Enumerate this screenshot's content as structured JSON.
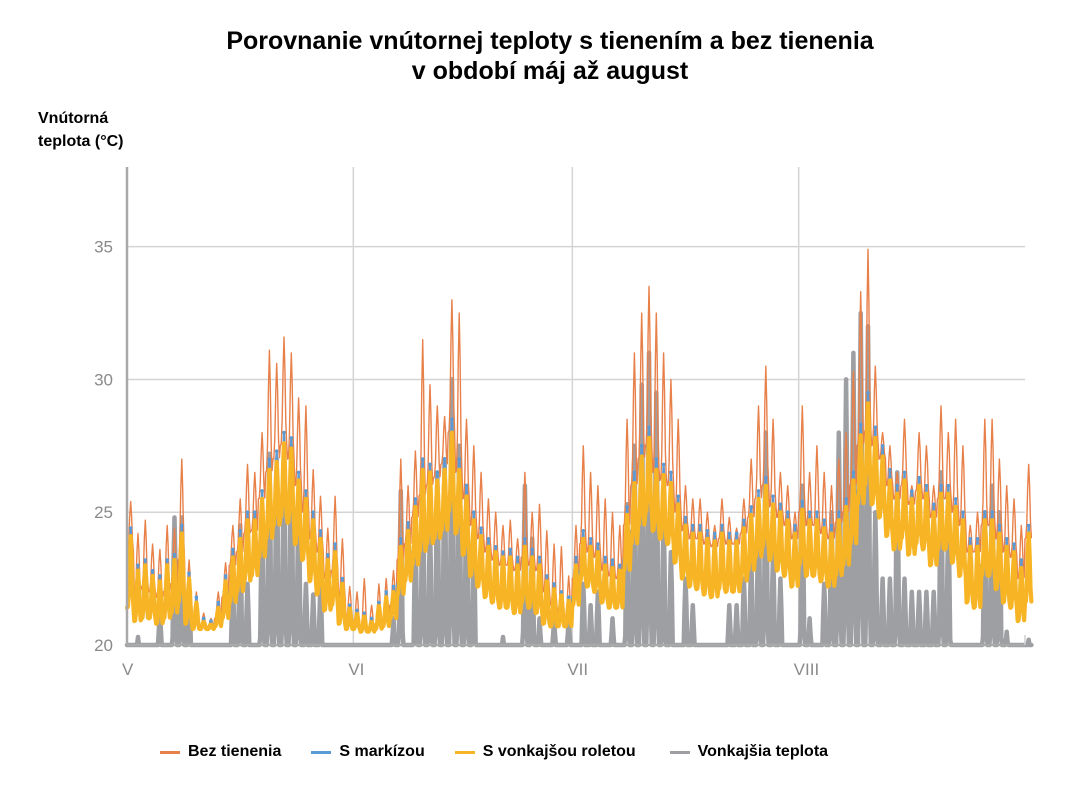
{
  "chart_data": {
    "type": "line",
    "title": "Porovnanie vnútornej teploty s tienením a bez tienenia v období máj až august",
    "title_lines": [
      "Porovnanie vnútornej teploty s tienením a bez tienenia",
      "v období máj až august"
    ],
    "ylabel_lines": [
      "Vnútorná",
      "teplota (°C)"
    ],
    "xlabel": "",
    "ylim": [
      20,
      38
    ],
    "yticks": [
      20,
      25,
      30,
      35
    ],
    "grid": true,
    "legend_position": "bottom",
    "x_unit": "day (1 May – 31 Aug)",
    "xticks": [
      {
        "label": "V",
        "day": 0
      },
      {
        "label": "VI",
        "day": 31
      },
      {
        "label": "VII",
        "day": 61
      },
      {
        "label": "VIII",
        "day": 92
      }
    ],
    "n_days": 123,
    "series": [
      {
        "name": "Bez tienenia",
        "color": "#e8804a",
        "daily_max": [
          25.4,
          24.2,
          24.7,
          23.8,
          23.6,
          24.5,
          24.4,
          27.0,
          23.2,
          22.0,
          21.2,
          21.0,
          22.0,
          23.1,
          24.5,
          25.5,
          26.8,
          26.5,
          28.0,
          31.1,
          30.6,
          31.6,
          31.0,
          29.3,
          29.0,
          26.6,
          25.6,
          24.4,
          25.6,
          24.0,
          22.2,
          22.0,
          22.5,
          21.5,
          22.3,
          22.5,
          22.8,
          27.0,
          26.0,
          27.3,
          31.5,
          29.8,
          29.0,
          28.6,
          33.0,
          32.5,
          28.5,
          27.5,
          26.5,
          25.5,
          25.0,
          24.5,
          24.7,
          24.0,
          26.5,
          25.0,
          25.3,
          24.3,
          23.8,
          23.7,
          22.6,
          24.5,
          27.5,
          26.5,
          26.0,
          25.5,
          25.0,
          24.5,
          28.5,
          31.0,
          32.5,
          33.5,
          32.5,
          31.0,
          30.0,
          28.5,
          26.0,
          25.5,
          25.5,
          25.0,
          24.5,
          25.5,
          24.8,
          24.4,
          25.5,
          27.0,
          29.0,
          30.5,
          28.5,
          26.5,
          26.0,
          25.0,
          29.0,
          26.5,
          27.5,
          26.5,
          26.0,
          27.0,
          28.0,
          30.3,
          33.3,
          34.9,
          30.5,
          28.0,
          27.5,
          26.5,
          28.5,
          26.0,
          28.0,
          27.5,
          26.0,
          29.0,
          28.0,
          28.5,
          27.5,
          24.5,
          25.0,
          28.5,
          28.5,
          27.0,
          26.0,
          25.5,
          24.5,
          26.8
        ],
        "daily_min": [
          23.5,
          22.0,
          22.2,
          22.0,
          21.8,
          22.0,
          22.3,
          23.2,
          21.5,
          20.8,
          20.7,
          20.7,
          21.0,
          21.8,
          23.0,
          23.5,
          24.2,
          24.3,
          25.5,
          26.5,
          27.0,
          27.5,
          27.0,
          26.0,
          25.0,
          24.0,
          23.5,
          22.5,
          22.8,
          21.8,
          21.0,
          20.8,
          20.7,
          20.6,
          20.8,
          21.0,
          21.5,
          23.2,
          23.8,
          24.8,
          25.6,
          26.0,
          26.3,
          26.8,
          28.0,
          26.5,
          25.5,
          24.5,
          24.0,
          23.5,
          23.2,
          23.0,
          23.0,
          22.8,
          23.3,
          23.0,
          22.8,
          22.0,
          21.5,
          21.2,
          21.0,
          22.5,
          23.8,
          23.5,
          23.3,
          22.8,
          22.6,
          22.5,
          24.5,
          26.0,
          27.0,
          27.5,
          26.5,
          26.2,
          26.0,
          25.0,
          24.3,
          24.0,
          24.0,
          23.8,
          23.7,
          24.0,
          23.8,
          23.8,
          24.2,
          24.8,
          25.5,
          26.0,
          25.2,
          24.8,
          24.5,
          24.0,
          25.0,
          24.5,
          24.5,
          24.2,
          24.0,
          24.6,
          25.0,
          26.0,
          27.5,
          28.0,
          27.5,
          27.0,
          26.0,
          25.5,
          26.0,
          25.3,
          25.8,
          25.5,
          24.8,
          25.5,
          25.5,
          25.0,
          24.5,
          23.5,
          23.5,
          24.5,
          24.5,
          24.0,
          23.5,
          23.3,
          22.5,
          24.0
        ]
      },
      {
        "name": "S markízou",
        "color": "#5b9bd5",
        "daily_max": [
          24.4,
          23.0,
          23.2,
          22.8,
          22.6,
          23.2,
          23.4,
          24.5,
          22.7,
          21.8,
          21.0,
          20.9,
          21.6,
          22.6,
          23.6,
          24.3,
          25.0,
          25.0,
          25.8,
          27.0,
          27.3,
          28.0,
          27.8,
          26.5,
          25.8,
          25.0,
          24.3,
          23.4,
          23.8,
          22.5,
          21.5,
          21.3,
          21.2,
          21.0,
          21.6,
          22.0,
          22.2,
          24.0,
          24.6,
          25.5,
          27.0,
          26.8,
          26.5,
          27.0,
          28.5,
          27.0,
          26.0,
          25.0,
          24.4,
          24.0,
          23.7,
          23.5,
          23.6,
          23.3,
          24.0,
          23.6,
          23.3,
          22.6,
          22.3,
          22.0,
          21.8,
          23.3,
          24.3,
          24.0,
          23.8,
          23.3,
          23.2,
          23.0,
          25.2,
          26.5,
          27.5,
          28.2,
          27.0,
          26.8,
          26.5,
          25.6,
          24.8,
          24.5,
          24.5,
          24.3,
          24.2,
          24.5,
          24.2,
          24.2,
          24.7,
          25.2,
          25.8,
          26.3,
          25.6,
          25.3,
          25.0,
          24.5,
          25.4,
          25.0,
          25.0,
          24.7,
          24.5,
          25.0,
          25.5,
          26.5,
          28.3,
          29.5,
          28.2,
          27.5,
          26.6,
          26.0,
          26.5,
          25.8,
          26.3,
          26.0,
          25.3,
          26.0,
          26.0,
          25.5,
          25.0,
          24.0,
          24.0,
          25.0,
          25.0,
          24.5,
          24.0,
          23.8,
          23.2,
          24.5
        ],
        "daily_min": [
          21.8,
          21.0,
          21.3,
          21.2,
          21.0,
          21.2,
          21.5,
          22.0,
          21.0,
          20.6,
          20.6,
          20.6,
          20.8,
          21.2,
          22.0,
          22.3,
          22.8,
          23.0,
          23.8,
          24.5,
          25.0,
          25.3,
          25.0,
          24.2,
          23.6,
          22.8,
          22.3,
          21.6,
          21.8,
          21.0,
          20.7,
          20.6,
          20.6,
          20.5,
          20.7,
          20.8,
          21.2,
          22.3,
          22.8,
          23.5,
          24.0,
          24.3,
          24.5,
          24.8,
          25.5,
          24.6,
          23.8,
          23.0,
          22.6,
          22.2,
          22.0,
          21.8,
          21.8,
          21.6,
          22.0,
          21.8,
          21.6,
          21.0,
          20.9,
          20.8,
          20.8,
          21.8,
          22.8,
          22.6,
          22.4,
          22.0,
          21.8,
          21.8,
          23.2,
          24.3,
          25.0,
          25.5,
          24.8,
          24.5,
          24.3,
          23.6,
          23.0,
          22.6,
          22.5,
          22.3,
          22.2,
          22.5,
          22.4,
          22.4,
          22.8,
          23.2,
          23.8,
          24.2,
          23.6,
          23.2,
          23.0,
          22.6,
          23.4,
          23.0,
          23.0,
          22.8,
          22.6,
          23.0,
          23.4,
          24.2,
          25.8,
          26.5,
          25.8,
          25.3,
          24.6,
          24.0,
          24.4,
          23.8,
          24.2,
          24.0,
          23.4,
          24.0,
          24.0,
          23.5,
          23.0,
          22.0,
          21.8,
          23.0,
          23.0,
          22.5,
          22.0,
          21.8,
          21.2,
          22.0
        ]
      },
      {
        "name": "S vonkajšou roletou",
        "color": "#f7b525",
        "daily_max": [
          24.1,
          22.8,
          23.0,
          22.6,
          22.4,
          23.0,
          23.2,
          24.2,
          22.5,
          21.6,
          20.9,
          20.8,
          21.4,
          22.4,
          23.3,
          24.0,
          24.7,
          24.7,
          25.5,
          26.6,
          26.9,
          27.6,
          27.4,
          26.2,
          25.5,
          24.7,
          24.0,
          23.2,
          23.5,
          22.3,
          21.4,
          21.2,
          21.1,
          20.9,
          21.5,
          21.8,
          22.0,
          23.7,
          24.3,
          25.2,
          26.6,
          26.5,
          26.2,
          26.6,
          28.0,
          26.6,
          25.6,
          24.7,
          24.1,
          23.7,
          23.5,
          23.3,
          23.3,
          23.0,
          23.7,
          23.3,
          23.0,
          22.4,
          22.1,
          21.9,
          21.7,
          23.0,
          24.0,
          23.7,
          23.5,
          23.0,
          22.9,
          22.8,
          24.9,
          26.1,
          27.1,
          27.8,
          26.6,
          26.4,
          26.1,
          25.3,
          24.5,
          24.2,
          24.2,
          24.0,
          23.9,
          24.2,
          23.9,
          23.9,
          24.4,
          24.9,
          25.5,
          26.0,
          25.3,
          25.0,
          24.7,
          24.2,
          25.1,
          24.7,
          24.7,
          24.4,
          24.2,
          24.7,
          25.2,
          26.2,
          27.9,
          29.1,
          27.8,
          27.1,
          26.2,
          25.7,
          26.2,
          25.5,
          26.0,
          25.7,
          25.0,
          25.7,
          25.7,
          25.2,
          24.7,
          23.7,
          23.7,
          24.7,
          24.7,
          24.2,
          23.7,
          23.5,
          22.9,
          24.2
        ],
        "daily_min": [
          21.4,
          20.9,
          21.0,
          21.0,
          20.8,
          21.0,
          21.2,
          21.6,
          20.8,
          20.6,
          20.6,
          20.6,
          20.7,
          21.0,
          21.6,
          22.0,
          22.4,
          22.6,
          23.3,
          24.0,
          24.5,
          24.8,
          24.6,
          23.8,
          23.2,
          22.4,
          21.9,
          21.3,
          21.5,
          20.8,
          20.6,
          20.6,
          20.5,
          20.5,
          20.6,
          20.7,
          21.0,
          21.9,
          22.4,
          23.0,
          23.5,
          23.8,
          24.0,
          24.3,
          25.0,
          24.2,
          23.4,
          22.6,
          22.2,
          21.8,
          21.6,
          21.4,
          21.4,
          21.2,
          21.6,
          21.4,
          21.2,
          20.8,
          20.7,
          20.7,
          20.7,
          21.5,
          22.4,
          22.2,
          22.0,
          21.6,
          21.4,
          21.4,
          22.8,
          23.8,
          24.5,
          25.0,
          24.3,
          24.0,
          23.8,
          23.1,
          22.5,
          22.2,
          22.1,
          21.9,
          21.8,
          22.1,
          22.0,
          22.0,
          22.4,
          22.8,
          23.3,
          23.7,
          23.2,
          22.8,
          22.6,
          22.2,
          23.0,
          22.6,
          22.6,
          22.4,
          22.2,
          22.6,
          23.0,
          23.8,
          25.3,
          26.0,
          25.3,
          24.8,
          24.1,
          23.6,
          24.0,
          23.4,
          23.8,
          23.6,
          23.0,
          23.6,
          23.6,
          23.1,
          22.6,
          21.6,
          21.4,
          22.6,
          22.6,
          22.1,
          21.6,
          21.4,
          20.9,
          21.6
        ]
      },
      {
        "name": "Vonkajšia teplota",
        "color": "#9e9fa3",
        "note": "values below 20 °C are clipped at the axis baseline",
        "daily_max": [
          20.0,
          20.3,
          20.0,
          20.0,
          21.3,
          20.0,
          24.8,
          24.8,
          22.3,
          20.0,
          20.0,
          20.0,
          20.0,
          20.0,
          22.3,
          24.5,
          22.3,
          20.0,
          24.8,
          27.2,
          27.0,
          27.2,
          27.5,
          25.6,
          22.3,
          21.9,
          22.3,
          20.0,
          20.0,
          20.0,
          20.0,
          20.0,
          20.0,
          20.0,
          20.0,
          20.0,
          21.0,
          25.8,
          20.0,
          24.0,
          26.5,
          24.5,
          26.5,
          27.0,
          30.0,
          27.5,
          26.0,
          24.0,
          20.0,
          20.0,
          20.0,
          20.3,
          20.0,
          20.0,
          26.0,
          24.0,
          21.0,
          20.0,
          21.0,
          20.0,
          21.0,
          20.0,
          22.3,
          21.5,
          22.0,
          20.0,
          21.0,
          20.0,
          25.3,
          27.5,
          29.8,
          31.0,
          29.5,
          24.8,
          23.5,
          20.0,
          22.5,
          21.5,
          20.0,
          20.0,
          20.0,
          20.0,
          21.5,
          21.5,
          22.5,
          23.3,
          25.3,
          28.0,
          23.5,
          22.5,
          20.0,
          20.0,
          26.0,
          21.0,
          20.0,
          22.3,
          25.0,
          28.0,
          30.0,
          31.0,
          32.5,
          32.0,
          25.0,
          22.5,
          22.5,
          26.5,
          22.5,
          22.0,
          22.0,
          22.0,
          22.0,
          26.5,
          24.5,
          20.0,
          20.0,
          20.0,
          20.0,
          25.0,
          26.0,
          25.0,
          20.5,
          20.0,
          20.0,
          20.2
        ]
      }
    ]
  },
  "legend": [
    {
      "label": "Bez tienenia",
      "color": "#e8804a"
    },
    {
      "label": "S markízou",
      "color": "#5b9bd5"
    },
    {
      "label": "S vonkajšou roletou",
      "color": "#f7b525"
    },
    {
      "label": "Vonkajšia teplota",
      "color": "#9e9fa3"
    }
  ]
}
